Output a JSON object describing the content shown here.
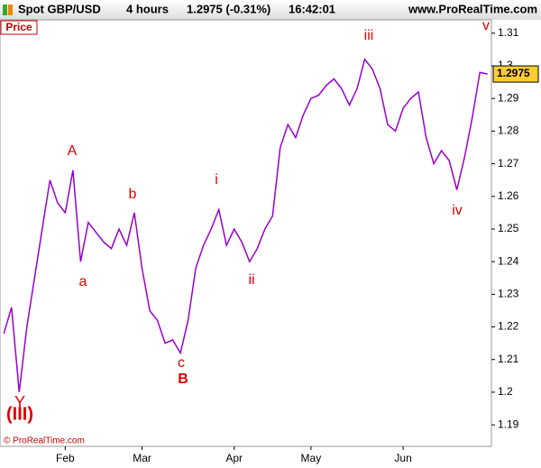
{
  "header": {
    "symbol": "Spot GBP/USD",
    "interval": "4 hours",
    "quote": "1.2975 (-0.31%)",
    "time": "16:42:01",
    "site": "www.ProRealTime.com"
  },
  "chart_data": {
    "type": "line",
    "panel_label": "Price",
    "copyright": "© ProRealTime.com",
    "categories": [
      null,
      null,
      null,
      null,
      null,
      null,
      null,
      null,
      "Feb",
      null,
      null,
      null,
      null,
      null,
      null,
      null,
      null,
      null,
      "Mar",
      null,
      null,
      null,
      null,
      null,
      null,
      null,
      null,
      null,
      null,
      null,
      "Apr",
      null,
      null,
      null,
      null,
      null,
      null,
      null,
      null,
      null,
      "May",
      null,
      null,
      null,
      null,
      null,
      null,
      null,
      null,
      null,
      null,
      null,
      "Jun",
      null,
      null,
      null,
      null,
      null,
      null,
      null,
      null,
      null,
      null,
      null
    ],
    "series": [
      {
        "name": "Spot GBP/USD",
        "color": "#9900cc",
        "values": [
          1.218,
          1.226,
          1.2,
          1.22,
          1.235,
          1.25,
          1.265,
          1.258,
          1.255,
          1.268,
          1.24,
          1.252,
          1.249,
          1.246,
          1.244,
          1.25,
          1.245,
          1.255,
          1.238,
          1.225,
          1.222,
          1.215,
          1.216,
          1.212,
          1.222,
          1.238,
          1.245,
          1.25,
          1.256,
          1.245,
          1.25,
          1.246,
          1.24,
          1.244,
          1.25,
          1.254,
          1.275,
          1.282,
          1.278,
          1.285,
          1.29,
          1.291,
          1.294,
          1.296,
          1.293,
          1.288,
          1.293,
          1.302,
          1.299,
          1.293,
          1.282,
          1.28,
          1.287,
          1.29,
          1.292,
          1.278,
          1.27,
          1.274,
          1.271,
          1.262,
          1.272,
          1.284,
          1.298,
          1.2975
        ]
      }
    ],
    "ylim": [
      1.1834,
      1.3141
    ],
    "yticks": [
      1.19,
      1.2,
      1.21,
      1.22,
      1.23,
      1.24,
      1.25,
      1.26,
      1.27,
      1.28,
      1.29,
      1.3,
      1.31
    ],
    "last_value": 1.2975,
    "annotations": [
      "(III)",
      "Y",
      "A",
      "a",
      "b",
      "c",
      "B",
      "i",
      "ii",
      "iii",
      "iv",
      "v"
    ]
  }
}
